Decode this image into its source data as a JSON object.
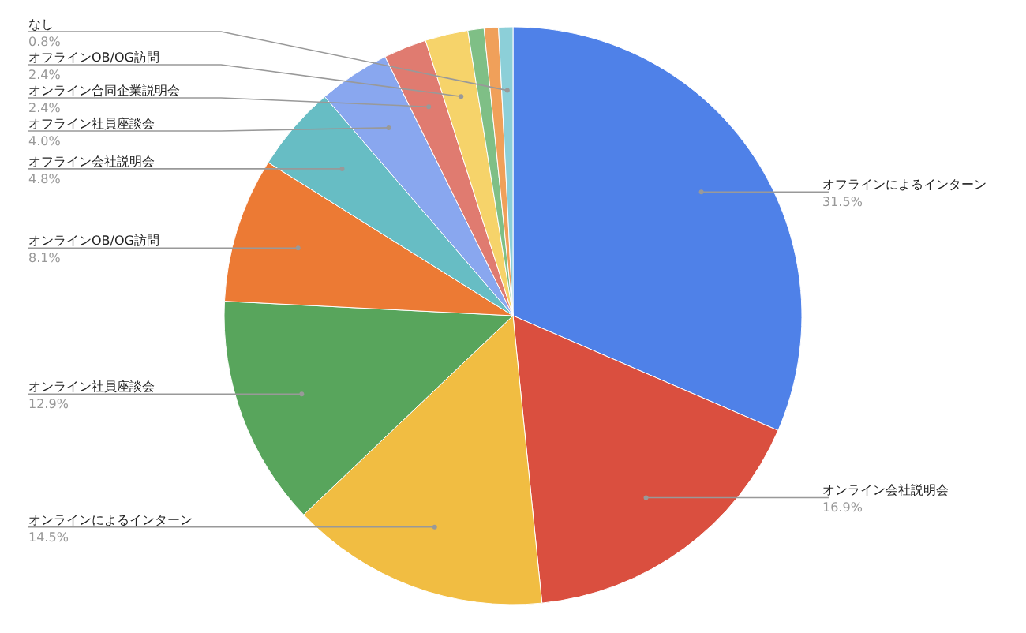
{
  "chart_data": {
    "type": "pie",
    "categories": [
      "オフラインによるインターン",
      "オンライン会社説明会",
      "オンラインによるインターン",
      "オンライン社員座談会",
      "オンラインOB/OG訪問",
      "オフライン会社説明会",
      "オフライン社員座談会",
      "オンライン合同企業説明会",
      "オフラインOB/OG訪問",
      null,
      null,
      "なし"
    ],
    "values": [
      31.5,
      16.9,
      14.5,
      12.9,
      8.1,
      4.8,
      4.0,
      2.4,
      2.4,
      0.9,
      0.8,
      0.8
    ],
    "value_labels": [
      "31.5%",
      "16.9%",
      "14.5%",
      "12.9%",
      "8.1%",
      "4.8%",
      "4.0%",
      "2.4%",
      "2.4%",
      null,
      null,
      "0.8%"
    ],
    "colors": [
      "#4f81e8",
      "#da4f3f",
      "#f1bd42",
      "#58a55c",
      "#ec7a34",
      "#67bdc4",
      "#89a7ef",
      "#e07b70",
      "#f6d36a",
      "#7fbf86",
      "#f0a05a",
      "#8ccfd8"
    ]
  }
}
